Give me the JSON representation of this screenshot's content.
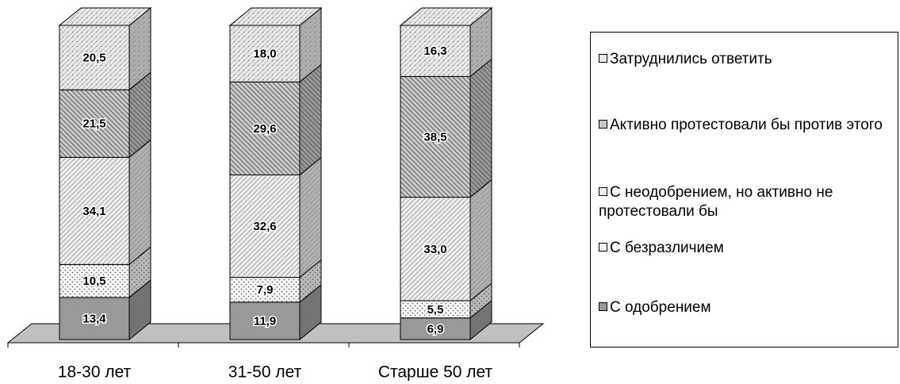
{
  "chart_data": {
    "type": "bar3d-stacked",
    "categories": [
      "18-30 лет",
      "31-50 лет",
      "Старше 50 лет"
    ],
    "series": [
      {
        "name": "С одобрением",
        "color": "#999999",
        "values": [
          13.4,
          11.9,
          6.9
        ],
        "value_labels": [
          "13,4",
          "11,9",
          "6,9"
        ]
      },
      {
        "name": "С безразличием",
        "color": "#f4f4f4",
        "values": [
          10.5,
          7.9,
          5.5
        ],
        "value_labels": [
          "10,5",
          "7,9",
          "5,5"
        ]
      },
      {
        "name": "С неодобрением, но активно не протестовали бы",
        "color": "#ececec",
        "values": [
          34.1,
          32.6,
          33.0
        ],
        "value_labels": [
          "34,1",
          "32,6",
          "33,0"
        ]
      },
      {
        "name": "Активно протестовали бы против этого",
        "color": "#c8c8c8",
        "values": [
          21.5,
          29.6,
          38.5
        ],
        "value_labels": [
          "21,5",
          "29,6",
          "38,5"
        ]
      },
      {
        "name": "Затруднились ответить",
        "color": "#e8e8e8",
        "values": [
          20.5,
          18.0,
          16.3
        ],
        "value_labels": [
          "20,5",
          "18,0",
          "16,3"
        ]
      }
    ],
    "legend": "right"
  }
}
